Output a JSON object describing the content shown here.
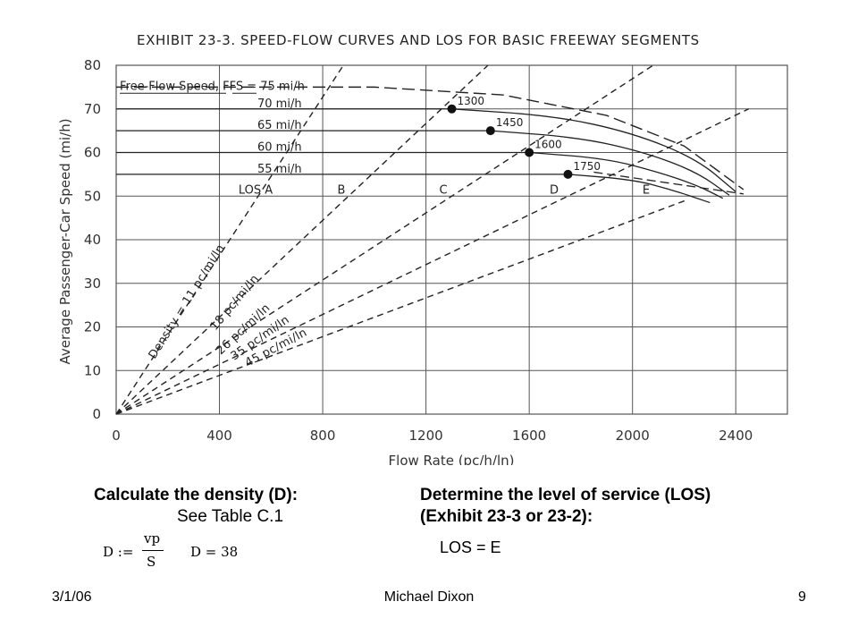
{
  "chart_data": {
    "type": "line",
    "title": "EXHIBIT 23-3.  SPEED-FLOW CURVES AND LOS FOR BASIC FREEWAY SEGMENTS",
    "xlabel": "Flow Rate (pc/h/ln)",
    "ylabel": "Average Passenger-Car Speed (mi/h)",
    "xlim": [
      0,
      2600
    ],
    "ylim": [
      0,
      80
    ],
    "xticks": [
      "0",
      "400",
      "800",
      "1200",
      "1600",
      "2000",
      "2400"
    ],
    "yticks": [
      "0",
      "10",
      "20",
      "30",
      "40",
      "50",
      "60",
      "70",
      "80"
    ],
    "grid": true,
    "ffs_header": "Free-Flow Speed, FFS = 75 mi/h",
    "series": [
      {
        "name": "75 mi/h",
        "x": [
          0,
          1000,
          1500,
          1900,
          2200,
          2430
        ],
        "y": [
          75,
          75,
          73.2,
          68.5,
          61.5,
          51.5
        ]
      },
      {
        "name": "70 mi/h",
        "x": [
          0,
          1300,
          1700,
          2000,
          2250,
          2400
        ],
        "y": [
          70,
          70,
          68.4,
          64.5,
          58.5,
          51
        ]
      },
      {
        "name": "65 mi/h",
        "x": [
          0,
          1450,
          1800,
          2050,
          2250,
          2375
        ],
        "y": [
          65,
          65,
          63.4,
          60,
          55.5,
          50.2
        ]
      },
      {
        "name": "60 mi/h",
        "x": [
          0,
          1600,
          1900,
          2100,
          2250,
          2350
        ],
        "y": [
          60,
          60,
          58.6,
          55.5,
          52.5,
          49.5
        ]
      },
      {
        "name": "55 mi/h",
        "x": [
          0,
          1750,
          2000,
          2150,
          2300
        ],
        "y": [
          55,
          55,
          53.8,
          51.5,
          48.5
        ]
      }
    ],
    "breakpoints": [
      {
        "label": "1300",
        "x": 1300,
        "y": 70
      },
      {
        "label": "1450",
        "x": 1450,
        "y": 65
      },
      {
        "label": "1600",
        "x": 1600,
        "y": 60
      },
      {
        "label": "1750",
        "x": 1750,
        "y": 55
      }
    ],
    "density_lines": [
      {
        "label": "Density = 11 pc/mi/ln",
        "density": 11
      },
      {
        "label": "18 pc/mi/ln",
        "density": 18
      },
      {
        "label": "26 pc/mi/ln",
        "density": 26
      },
      {
        "label": "35 pc/mi/ln",
        "density": 35
      },
      {
        "label": "45 pc/mi/ln",
        "density": 45
      }
    ],
    "los_labels": [
      "LOS A",
      "B",
      "C",
      "D",
      "E"
    ]
  },
  "left": {
    "heading": "Calculate the density (D):",
    "sub": "See Table C.1",
    "formula_lhs": "D :=",
    "formula_num": "vp",
    "formula_den": "S",
    "result": "D = 38"
  },
  "right": {
    "heading1": "Determine the level of service (LOS)",
    "heading2": "(Exhibit 23-3 or 23-2):",
    "answer": "LOS = E"
  },
  "footer": {
    "date": "3/1/06",
    "author": "Michael Dixon",
    "page": "9"
  }
}
